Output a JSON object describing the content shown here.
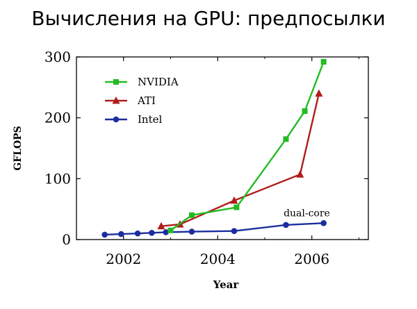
{
  "slide": {
    "title": "Вычисления на GPU: предпосылки"
  },
  "chart_data": {
    "type": "line",
    "title": "",
    "xlabel": "Year",
    "ylabel": "GFLOPS",
    "xlim": [
      2001,
      2007.2
    ],
    "ylim": [
      0,
      300
    ],
    "xticks": [
      2002,
      2004,
      2006
    ],
    "yticks": [
      0,
      100,
      200,
      300
    ],
    "legend": "top-left",
    "series": [
      {
        "name": "NVIDIA",
        "color": "#22bb22",
        "marker": "square",
        "x": [
          2003.0,
          2003.45,
          2004.4,
          2005.45,
          2005.85,
          2006.25
        ],
        "y": [
          15,
          40,
          53,
          165,
          211,
          292
        ]
      },
      {
        "name": "ATI",
        "color": "#b01c1c",
        "marker": "triangle",
        "x": [
          2002.8,
          2003.2,
          2004.35,
          2005.75,
          2006.15
        ],
        "y": [
          22,
          25,
          64,
          107,
          240
        ]
      },
      {
        "name": "Intel",
        "color": "#1c2e9e",
        "marker": "circle",
        "x": [
          2001.6,
          2001.95,
          2002.3,
          2002.6,
          2002.9,
          2003.45,
          2004.35,
          2005.45,
          2006.25
        ],
        "y": [
          8,
          9,
          10,
          11,
          12,
          13,
          14,
          24,
          27
        ]
      }
    ],
    "annotations": [
      {
        "text": "dual-core",
        "x": 2005.4,
        "y": 38
      }
    ]
  }
}
